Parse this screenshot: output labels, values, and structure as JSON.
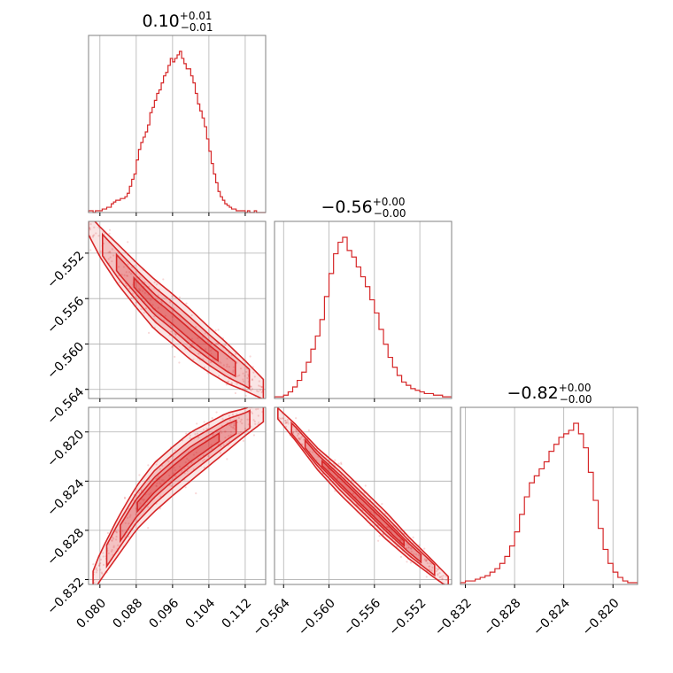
{
  "chart_data": {
    "type": "corner",
    "color": "#d62728",
    "grid": true,
    "parameters": [
      {
        "title": {
          "median": "0.10",
          "plus": "+0.01",
          "minus": "−0.01"
        },
        "range": [
          0.0775,
          0.1165
        ],
        "ticks": [
          "0.080",
          "0.088",
          "0.096",
          "0.104",
          "0.112"
        ],
        "tick_values": [
          0.08,
          0.088,
          0.096,
          0.104,
          0.112
        ],
        "hist_bins": [
          0.0775,
          0.078,
          0.0785,
          0.079,
          0.0795,
          0.08,
          0.0805,
          0.081,
          0.0815,
          0.082,
          0.0825,
          0.083,
          0.0835,
          0.084,
          0.0845,
          0.085,
          0.0855,
          0.086,
          0.0865,
          0.087,
          0.0875,
          0.088,
          0.0885,
          0.089,
          0.0895,
          0.09,
          0.0905,
          0.091,
          0.0915,
          0.092,
          0.0925,
          0.093,
          0.0935,
          0.094,
          0.0945,
          0.095,
          0.0955,
          0.096,
          0.0965,
          0.097,
          0.0975,
          0.098,
          0.0985,
          0.099,
          0.0995,
          0.1,
          0.1005,
          0.101,
          0.1015,
          0.102,
          0.1025,
          0.103,
          0.1035,
          0.104,
          0.1045,
          0.105,
          0.1055,
          0.106,
          0.1065,
          0.107,
          0.1075,
          0.108,
          0.1085,
          0.109,
          0.1095,
          0.11,
          0.1105,
          0.111,
          0.1115,
          0.112,
          0.1125,
          0.113,
          0.1135,
          0.114,
          0.1145,
          0.115,
          0.1155,
          0.116,
          0.1165
        ],
        "hist_counts": [
          1,
          1,
          0,
          1,
          1,
          1,
          2,
          2,
          3,
          3,
          5,
          6,
          7,
          7,
          8,
          8,
          9,
          11,
          15,
          19,
          22,
          30,
          36,
          40,
          43,
          46,
          50,
          57,
          60,
          64,
          68,
          70,
          74,
          78,
          80,
          84,
          88,
          86,
          88,
          90,
          92,
          88,
          85,
          82,
          82,
          78,
          74,
          68,
          62,
          58,
          54,
          49,
          42,
          35,
          28,
          22,
          17,
          12,
          9,
          7,
          5,
          4,
          3,
          2,
          2,
          1,
          1,
          1,
          1,
          0,
          1,
          0,
          0,
          1,
          0,
          0,
          0,
          0
        ]
      },
      {
        "title": {
          "median": "−0.56",
          "plus": "+0.00",
          "minus": "−0.00"
        },
        "range": [
          -0.5648,
          -0.5492
        ],
        "ticks": [
          "−0.564",
          "−0.560",
          "−0.556",
          "−0.552"
        ],
        "tick_values": [
          -0.564,
          -0.56,
          -0.556,
          -0.552
        ],
        "hist_bins": [
          -0.5648,
          -0.5644,
          -0.564,
          -0.5636,
          -0.5632,
          -0.5628,
          -0.5624,
          -0.562,
          -0.5616,
          -0.5612,
          -0.5608,
          -0.5604,
          -0.56,
          -0.5596,
          -0.5592,
          -0.5588,
          -0.5584,
          -0.558,
          -0.5576,
          -0.5572,
          -0.5568,
          -0.5564,
          -0.556,
          -0.5556,
          -0.5552,
          -0.5548,
          -0.5544,
          -0.554,
          -0.5536,
          -0.5532,
          -0.5528,
          -0.5524,
          -0.552,
          -0.5516,
          -0.5512,
          -0.5508,
          -0.5504,
          -0.55,
          -0.5496,
          -0.5492
        ],
        "hist_counts": [
          1,
          1,
          2,
          4,
          7,
          11,
          16,
          22,
          30,
          38,
          48,
          62,
          76,
          88,
          95,
          98,
          90,
          86,
          80,
          74,
          68,
          60,
          52,
          42,
          33,
          25,
          19,
          14,
          10,
          8,
          6,
          5,
          4,
          3,
          3,
          2,
          2,
          1,
          1
        ]
      },
      {
        "title": {
          "median": "−0.82",
          "plus": "+0.00",
          "minus": "−0.00"
        },
        "range": [
          -0.8324,
          -0.818
        ],
        "ticks": [
          "−0.832",
          "−0.828",
          "−0.824",
          "−0.820"
        ],
        "tick_values": [
          -0.832,
          -0.828,
          -0.824,
          -0.82
        ],
        "hist_bins": [
          -0.8324,
          -0.832,
          -0.8316,
          -0.8312,
          -0.8308,
          -0.8304,
          -0.83,
          -0.8296,
          -0.8292,
          -0.8288,
          -0.8284,
          -0.828,
          -0.8276,
          -0.8272,
          -0.8268,
          -0.8264,
          -0.826,
          -0.8256,
          -0.8252,
          -0.8248,
          -0.8244,
          -0.824,
          -0.8236,
          -0.8232,
          -0.8228,
          -0.8224,
          -0.822,
          -0.8216,
          -0.8212,
          -0.8208,
          -0.8204,
          -0.82,
          -0.8196,
          -0.8192,
          -0.8188,
          -0.8184,
          -0.818
        ],
        "hist_counts": [
          1,
          2,
          2,
          3,
          4,
          5,
          7,
          9,
          12,
          16,
          22,
          30,
          40,
          50,
          58,
          62,
          66,
          70,
          76,
          80,
          84,
          86,
          88,
          92,
          86,
          78,
          64,
          48,
          32,
          20,
          12,
          7,
          4,
          2,
          1,
          1
        ]
      }
    ],
    "pairs": [
      {
        "row": 1,
        "col": 0,
        "x": [
          0.0775,
          0.08,
          0.084,
          0.088,
          0.092,
          0.096,
          0.1,
          0.104,
          0.108,
          0.112,
          0.116
        ],
        "y": [
          -0.5495,
          -0.551,
          -0.553,
          -0.5548,
          -0.5565,
          -0.5578,
          -0.5592,
          -0.5605,
          -0.5617,
          -0.5628,
          -0.564
        ],
        "width": [
          0.0004,
          0.0006,
          0.0008,
          0.0009,
          0.001,
          0.001,
          0.001,
          0.0009,
          0.0008,
          0.0006,
          0.0004
        ]
      },
      {
        "row": 2,
        "col": 0,
        "x": [
          0.0785,
          0.08,
          0.084,
          0.088,
          0.092,
          0.096,
          0.1,
          0.104,
          0.108,
          0.112,
          0.116
        ],
        "y": [
          -0.8322,
          -0.831,
          -0.8285,
          -0.8262,
          -0.8245,
          -0.8232,
          -0.822,
          -0.821,
          -0.82,
          -0.8192,
          -0.8183
        ],
        "width": [
          0.0004,
          0.0005,
          0.0007,
          0.0008,
          0.0009,
          0.0009,
          0.0009,
          0.0008,
          0.0007,
          0.0005,
          0.0004
        ]
      },
      {
        "row": 2,
        "col": 1,
        "x": [
          -0.5645,
          -0.563,
          -0.561,
          -0.559,
          -0.557,
          -0.555,
          -0.553,
          -0.551,
          -0.5495
        ],
        "y": [
          -0.8185,
          -0.82,
          -0.8222,
          -0.824,
          -0.8258,
          -0.8276,
          -0.8294,
          -0.831,
          -0.8322
        ],
        "width": [
          0.0002,
          0.0003,
          0.0004,
          0.0005,
          0.0005,
          0.0005,
          0.0004,
          0.0003,
          0.0002
        ]
      }
    ]
  }
}
